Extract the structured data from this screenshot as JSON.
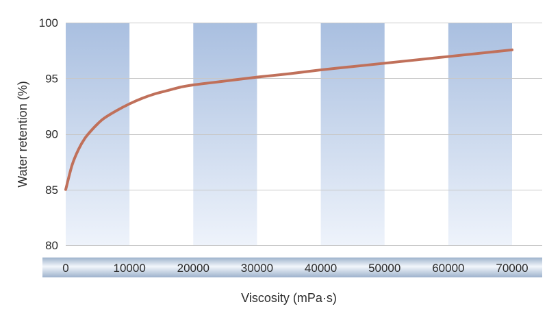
{
  "chart_data": {
    "type": "line",
    "title": "",
    "xlabel": "Viscosity  (mPa·s)",
    "ylabel": "Water retention  (%)",
    "xlim": [
      0,
      70000
    ],
    "ylim": [
      80,
      100
    ],
    "x_ticks": [
      0,
      10000,
      20000,
      30000,
      40000,
      50000,
      60000,
      70000
    ],
    "y_ticks": [
      80,
      85,
      90,
      95,
      100
    ],
    "grid": true,
    "shaded_bands_x": [
      [
        0,
        10000
      ],
      [
        20000,
        30000
      ],
      [
        40000,
        50000
      ],
      [
        60000,
        70000
      ]
    ],
    "series": [
      {
        "color": "#c0705a",
        "x": [
          0,
          1000,
          2000,
          3000,
          4000,
          5000,
          6000,
          8000,
          10000,
          12000,
          14000,
          16000,
          18000,
          20000,
          25000,
          30000,
          35000,
          40000,
          45000,
          50000,
          55000,
          60000,
          65000,
          70000
        ],
        "y": [
          85.0,
          87.2,
          88.6,
          89.6,
          90.3,
          90.9,
          91.4,
          92.1,
          92.7,
          93.2,
          93.6,
          93.9,
          94.2,
          94.4,
          94.75,
          95.1,
          95.4,
          95.75,
          96.05,
          96.35,
          96.65,
          96.95,
          97.25,
          97.55
        ]
      }
    ],
    "colors": {
      "band_top": "#a9bfe0",
      "band_bottom": "#eef3fb",
      "grid": "#c8c8c8",
      "axis_strip_dark": "#9db2cc",
      "axis_strip_light": "#f2f6fb",
      "line": "#c0705a"
    }
  }
}
